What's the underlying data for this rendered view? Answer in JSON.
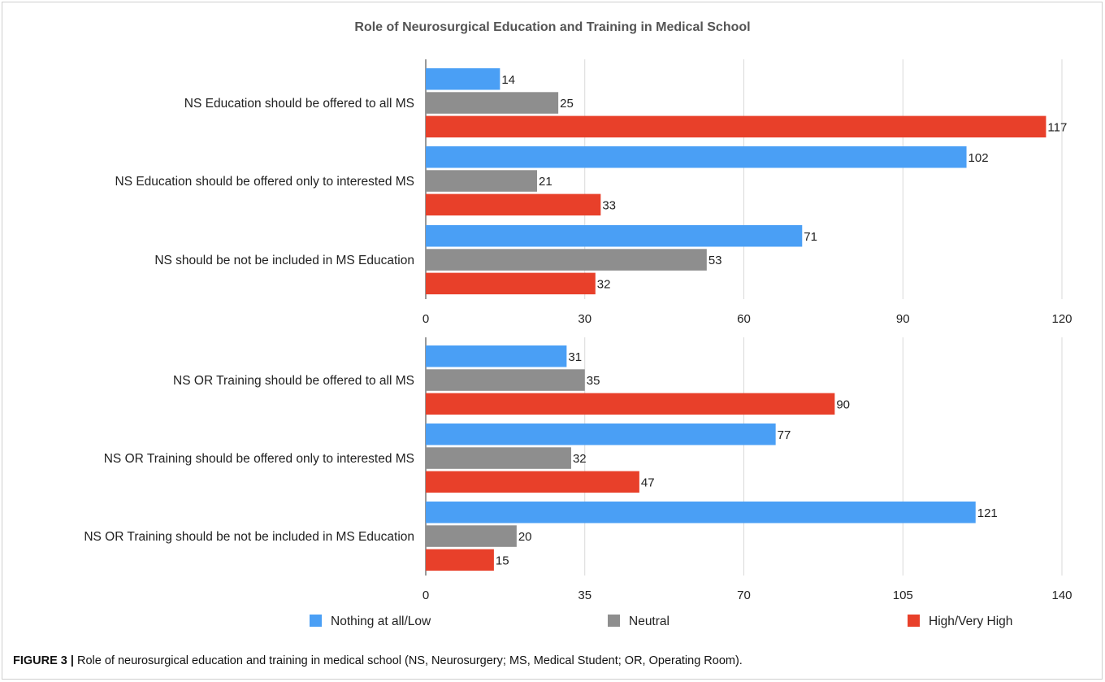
{
  "caption": {
    "label": "FIGURE 3 |",
    "text": "Role of neurosurgical education and training in medical school (NS, Neurosurgery; MS, Medical Student; OR, Operating Room)."
  },
  "chart_data": {
    "title": "Role of Neurosurgical Education and Training in Medical School",
    "type": "bar",
    "orientation": "horizontal",
    "legend": {
      "placement": "bottom",
      "entries": [
        {
          "name": "Nothing at all/Low",
          "color": "#4a9ff5"
        },
        {
          "name": "Neutral",
          "color": "#8e8e8e"
        },
        {
          "name": "High/Very High",
          "color": "#e8402a"
        }
      ]
    },
    "panels": [
      {
        "categories": [
          "NS Education should be offered to all MS",
          "NS Education should be offered only to interested MS",
          "NS should be not be included in MS Education"
        ],
        "series": [
          {
            "name": "Nothing at all/Low",
            "color": "#4a9ff5",
            "values": [
              14,
              102,
              71
            ]
          },
          {
            "name": "Neutral",
            "color": "#8e8e8e",
            "values": [
              25,
              21,
              53
            ]
          },
          {
            "name": "High/Very High",
            "color": "#e8402a",
            "values": [
              117,
              33,
              32
            ]
          }
        ],
        "xlim": [
          0,
          120
        ],
        "xticks": [
          0,
          30,
          60,
          90,
          120
        ],
        "grid": true
      },
      {
        "categories": [
          "NS OR Training should be offered to all MS",
          "NS OR Training should be offered only to interested MS",
          "NS OR Training should be not be included in MS Education"
        ],
        "series": [
          {
            "name": "Nothing at all/Low",
            "color": "#4a9ff5",
            "values": [
              31,
              77,
              121
            ]
          },
          {
            "name": "Neutral",
            "color": "#8e8e8e",
            "values": [
              35,
              32,
              20
            ]
          },
          {
            "name": "High/Very High",
            "color": "#e8402a",
            "values": [
              90,
              47,
              15
            ]
          }
        ],
        "xlim": [
          0,
          140
        ],
        "xticks": [
          0,
          35,
          70,
          105,
          140
        ],
        "grid": true
      }
    ]
  }
}
